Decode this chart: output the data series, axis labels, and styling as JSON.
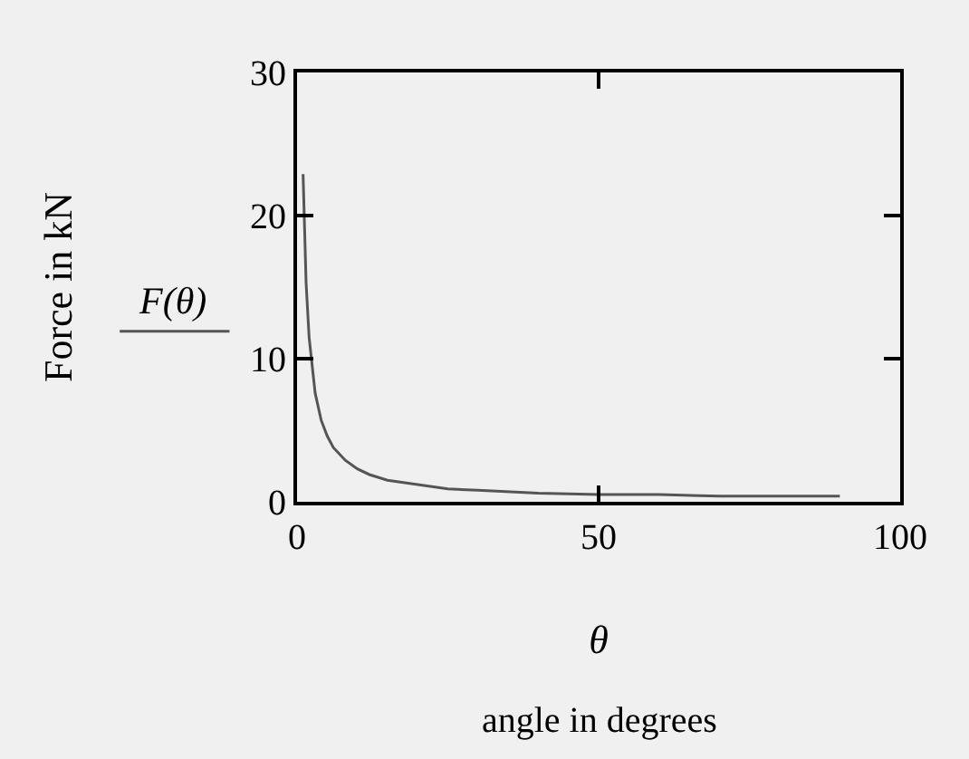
{
  "chart_data": {
    "type": "line",
    "ylabel": "Force in kN",
    "xlabel": "θ",
    "annotations": [
      "angle in degrees"
    ],
    "x": [
      1,
      1.5,
      2,
      3,
      4,
      5,
      6,
      8,
      10,
      12,
      15,
      20,
      25,
      30,
      40,
      50,
      60,
      70,
      80,
      90
    ],
    "series": [
      {
        "name": "F(θ)",
        "color": "#555555",
        "values": [
          22.9,
          15.3,
          11.5,
          7.6,
          5.7,
          4.6,
          3.8,
          2.9,
          2.3,
          1.9,
          1.5,
          1.2,
          0.9,
          0.8,
          0.6,
          0.5,
          0.5,
          0.4,
          0.4,
          0.4
        ]
      }
    ],
    "xlim": [
      0,
      100
    ],
    "xticks": [
      0,
      50,
      100
    ],
    "ylim": [
      0,
      30
    ],
    "yticks": [
      0,
      10,
      20,
      30
    ],
    "grid": false,
    "legend": "left",
    "marker": "none",
    "line_style": "solid"
  }
}
